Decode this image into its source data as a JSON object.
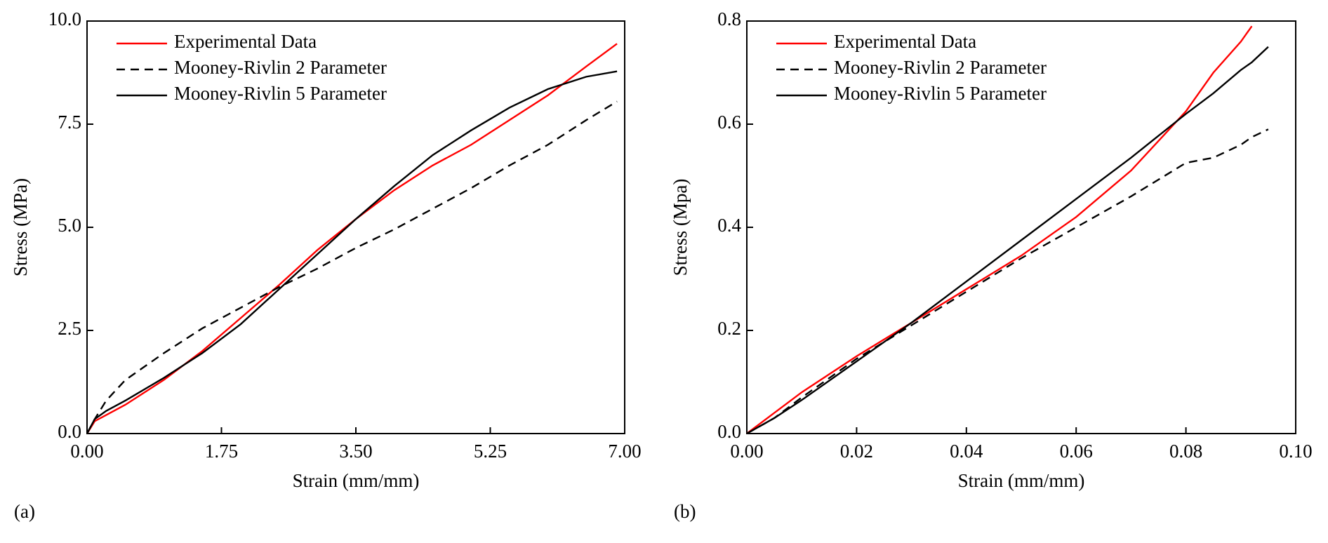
{
  "chart_data": [
    {
      "type": "line",
      "panel_label": "(a)",
      "x_label": "Strain (mm/mm)",
      "y_label": "Stress (MPa)",
      "x": [
        0,
        0.1,
        0.25,
        0.5,
        1,
        1.5,
        2,
        2.5,
        3,
        3.5,
        4,
        4.5,
        5,
        5.5,
        6,
        6.5,
        6.9
      ],
      "series": [
        {
          "name": "Experimental Data",
          "color": "#ff0000",
          "dash": false,
          "values": [
            0,
            0.3,
            0.45,
            0.7,
            1.3,
            2.0,
            2.8,
            3.6,
            4.45,
            5.2,
            5.9,
            6.5,
            7.0,
            7.6,
            8.2,
            8.9,
            9.45
          ]
        },
        {
          "name": "Mooney-Rivlin 2 Parameter",
          "color": "#000000",
          "dash": true,
          "values": [
            0,
            0.35,
            0.8,
            1.3,
            1.95,
            2.55,
            3.05,
            3.55,
            4.0,
            4.5,
            4.95,
            5.45,
            5.95,
            6.5,
            7.0,
            7.6,
            8.05
          ]
        },
        {
          "name": "Mooney-Rivlin 5 Parameter",
          "color": "#000000",
          "dash": false,
          "values": [
            0,
            0.35,
            0.55,
            0.8,
            1.35,
            1.95,
            2.65,
            3.5,
            4.35,
            5.2,
            6.0,
            6.75,
            7.35,
            7.9,
            8.35,
            8.65,
            8.78
          ]
        }
      ],
      "xlim": [
        0,
        7
      ],
      "ylim": [
        0,
        10
      ],
      "xticks": [
        {
          "value": 0,
          "label": "0.00"
        },
        {
          "value": 1.75,
          "label": "1.75"
        },
        {
          "value": 3.5,
          "label": "3.50"
        },
        {
          "value": 5.25,
          "label": "5.25"
        },
        {
          "value": 7,
          "label": "7.00"
        }
      ],
      "yticks": [
        {
          "value": 0,
          "label": "0.0"
        },
        {
          "value": 2.5,
          "label": "2.5"
        },
        {
          "value": 5,
          "label": "5.0"
        },
        {
          "value": 7.5,
          "label": "7.5"
        },
        {
          "value": 10,
          "label": "10.0"
        }
      ],
      "legend": "upper-left",
      "grid": false
    },
    {
      "type": "line",
      "panel_label": "(b)",
      "x_label": "Strain (mm/mm)",
      "y_label": "Stress (Mpa)",
      "x": [
        0,
        0.005,
        0.01,
        0.02,
        0.03,
        0.04,
        0.05,
        0.06,
        0.07,
        0.08,
        0.085,
        0.09,
        0.092,
        0.095
      ],
      "series": [
        {
          "name": "Experimental Data",
          "color": "#ff0000",
          "dash": false,
          "values": [
            0,
            0.04,
            0.08,
            0.15,
            0.215,
            0.28,
            0.345,
            0.42,
            0.51,
            0.625,
            0.7,
            0.76,
            0.79,
            null
          ]
        },
        {
          "name": "Mooney-Rivlin 2 Parameter",
          "color": "#000000",
          "dash": true,
          "values": [
            0,
            0.03,
            0.07,
            0.145,
            0.21,
            0.275,
            0.34,
            0.4,
            0.46,
            0.525,
            0.535,
            0.56,
            0.575,
            0.59
          ]
        },
        {
          "name": "Mooney-Rivlin 5 Parameter",
          "color": "#000000",
          "dash": false,
          "values": [
            0,
            0.03,
            0.065,
            0.14,
            0.215,
            0.295,
            0.375,
            0.455,
            0.535,
            0.62,
            0.66,
            0.705,
            0.72,
            0.75
          ]
        }
      ],
      "xlim": [
        0,
        0.1
      ],
      "ylim": [
        0,
        0.8
      ],
      "xticks": [
        {
          "value": 0,
          "label": "0.00"
        },
        {
          "value": 0.02,
          "label": "0.02"
        },
        {
          "value": 0.04,
          "label": "0.04"
        },
        {
          "value": 0.06,
          "label": "0.06"
        },
        {
          "value": 0.08,
          "label": "0.08"
        },
        {
          "value": 0.1,
          "label": "0.10"
        }
      ],
      "yticks": [
        {
          "value": 0,
          "label": "0.0"
        },
        {
          "value": 0.2,
          "label": "0.2"
        },
        {
          "value": 0.4,
          "label": "0.4"
        },
        {
          "value": 0.6,
          "label": "0.6"
        },
        {
          "value": 0.8,
          "label": "0.8"
        }
      ],
      "legend": "upper-left",
      "grid": false
    }
  ]
}
